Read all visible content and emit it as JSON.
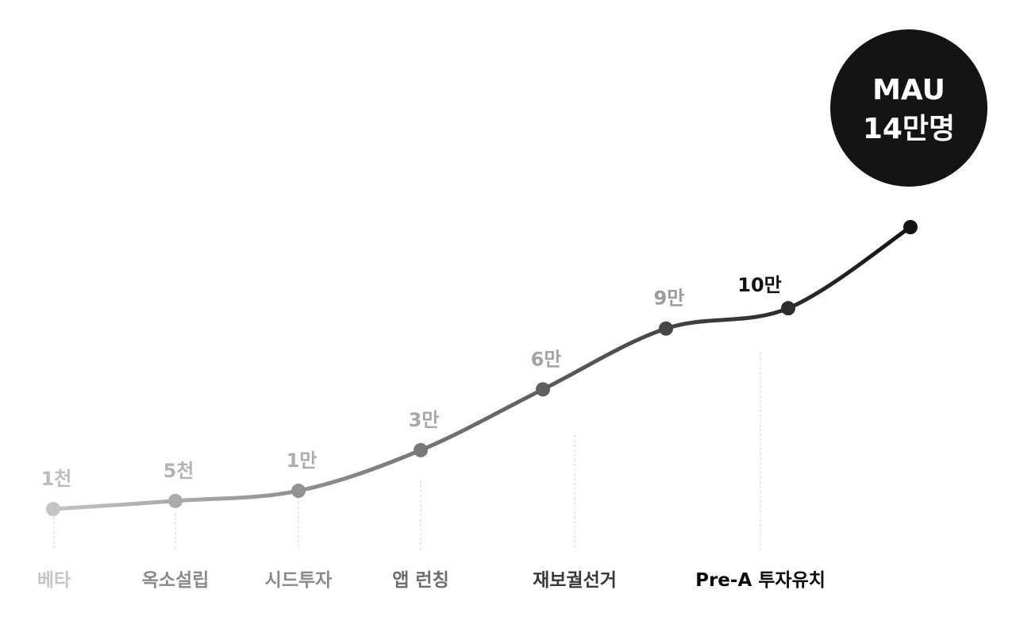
{
  "chart_data": {
    "type": "line",
    "categories": [
      "베타",
      "옥소설립",
      "시드투자",
      "앱 런칭",
      "재보궐선거",
      "Pre-A 투자유치"
    ],
    "points": [
      {
        "label": "1천",
        "value": 1000
      },
      {
        "label": "5천",
        "value": 5000
      },
      {
        "label": "1만",
        "value": 10000
      },
      {
        "label": "3만",
        "value": 30000
      },
      {
        "label": "6만",
        "value": 60000
      },
      {
        "label": "9만",
        "value": 90000
      },
      {
        "label": "10만",
        "value": 100000
      },
      {
        "label": "",
        "value": 140000
      }
    ],
    "title": "",
    "xlabel": "",
    "ylabel": "",
    "grid": false,
    "badge": {
      "line1": "MAU",
      "line2": "14만명",
      "color": "#141414"
    },
    "colors": {
      "start": "#bdbdbd",
      "end": "#141414",
      "axis": "#e6e6e6",
      "guide": "#d6d6d6"
    }
  }
}
